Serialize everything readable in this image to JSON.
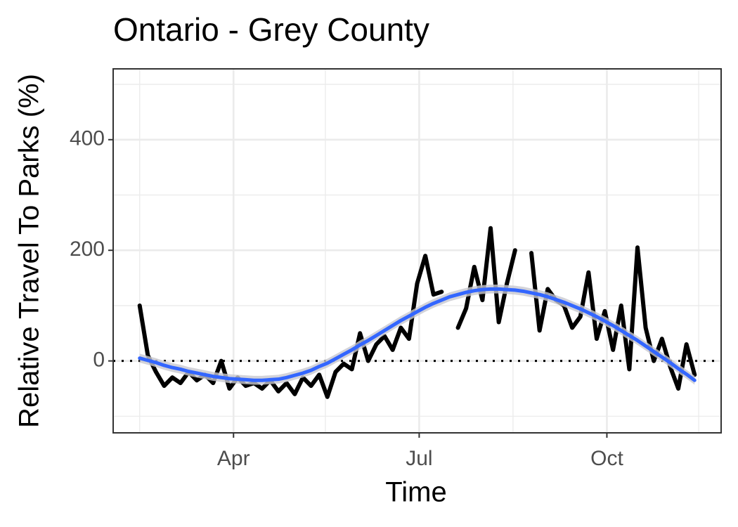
{
  "chart_data": {
    "type": "line",
    "title": "Ontario - Grey County",
    "x_label": "Time",
    "y_label": "Relative Travel To Parks (%)",
    "x": [
      46,
      50,
      54,
      58,
      62,
      66,
      70,
      74,
      78,
      82,
      86,
      90,
      94,
      98,
      102,
      106,
      110,
      114,
      118,
      122,
      126,
      130,
      134,
      138,
      142,
      146,
      150,
      154,
      158,
      162,
      166,
      170,
      174,
      178,
      182,
      186,
      190,
      194,
      198,
      202,
      206,
      210,
      214,
      218,
      222,
      226,
      230,
      234,
      238,
      242,
      246,
      250,
      254,
      258,
      262,
      266,
      270,
      274,
      278,
      282,
      286,
      290,
      294,
      298,
      302,
      306,
      310,
      314,
      318
    ],
    "series": [
      {
        "color": "#000000",
        "values": [
          100,
          10,
          -20,
          -45,
          -30,
          -40,
          -20,
          -35,
          -25,
          -40,
          0,
          -50,
          -30,
          -45,
          -40,
          -50,
          -35,
          -55,
          -40,
          -60,
          -30,
          -45,
          -25,
          -65,
          -20,
          -5,
          -15,
          50,
          0,
          30,
          45,
          20,
          60,
          40,
          140,
          190,
          120,
          125,
          null,
          60,
          95,
          170,
          110,
          240,
          70,
          140,
          200,
          null,
          195,
          55,
          130,
          110,
          100,
          60,
          80,
          160,
          40,
          90,
          20,
          100,
          -15,
          205,
          60,
          0,
          40,
          -10,
          -50,
          30,
          -25
        ]
      },
      {
        "color": "#3366ff",
        "values": [
          5,
          1,
          -3,
          -8,
          -12,
          -15,
          -19,
          -22,
          -25,
          -28,
          -30,
          -32,
          -33,
          -34,
          -35,
          -35,
          -34,
          -33,
          -30,
          -26,
          -22,
          -17,
          -10,
          -4,
          4,
          12,
          20,
          29,
          37,
          46,
          55,
          64,
          73,
          81,
          89,
          97,
          104,
          110,
          116,
          120,
          124,
          127,
          129,
          130,
          130,
          129,
          128,
          126,
          123,
          120,
          116,
          111,
          106,
          100,
          94,
          87,
          80,
          72,
          64,
          55,
          46,
          37,
          27,
          17,
          7,
          -3,
          -14,
          -24,
          -35
        ],
        "ribbon": 8,
        "ribbon_color": "#c8c8d0"
      }
    ],
    "reference_line": 0,
    "xlim": [
      33,
      331
    ],
    "ylim": [
      -130,
      528
    ],
    "xticks": [
      {
        "value": 92,
        "label": "Apr"
      },
      {
        "value": 183,
        "label": "Jul"
      },
      {
        "value": 275,
        "label": "Oct"
      }
    ],
    "yticks": [
      0,
      200,
      400
    ],
    "x_minor_ticks": [
      46,
      137,
      229,
      320
    ],
    "y_minor_ticks": [
      -100,
      100,
      300,
      500
    ],
    "grid": true
  }
}
